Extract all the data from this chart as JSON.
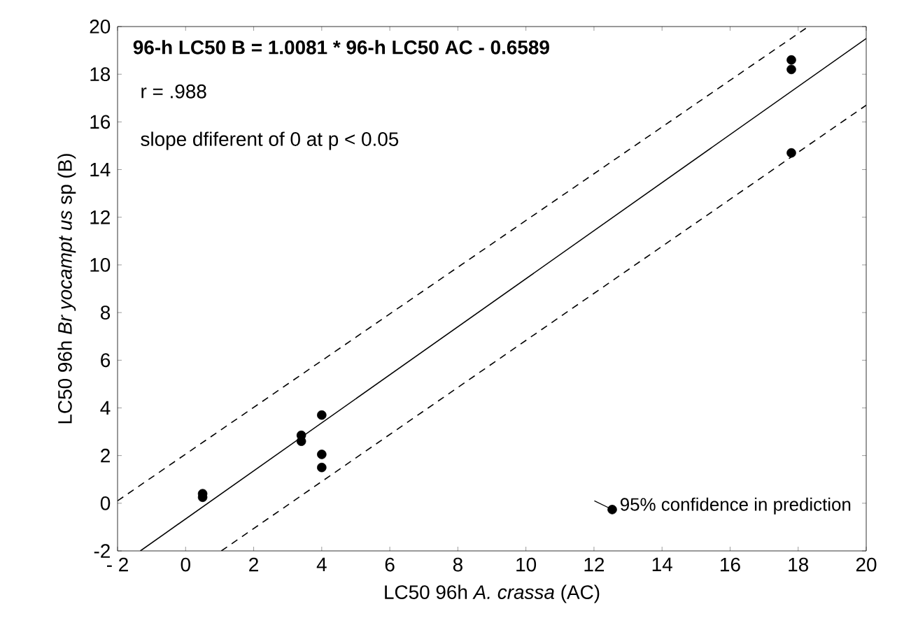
{
  "chart_data": {
    "type": "scatter",
    "title": "96-h LC50 B  = 1.0081 * 96-h LC50 AC - 0.6589",
    "xlabel": "LC50 96h *A. crassa* (AC)",
    "ylabel": "LC50 96h *Br yocampt us* sp (B)",
    "annotations": [
      "r = .988",
      "slope dfiferent of 0 at p < 0.05"
    ],
    "xlim": [
      -2,
      20
    ],
    "ylim": [
      -2,
      20
    ],
    "xticks": [
      {
        "value": -2,
        "label": "- 2"
      },
      0,
      2,
      4,
      6,
      8,
      10,
      12,
      14,
      16,
      18,
      20
    ],
    "yticks": [
      -2,
      0,
      2,
      4,
      6,
      8,
      10,
      12,
      14,
      16,
      18,
      20
    ],
    "grid": false,
    "legend": "bottom right",
    "series": [
      {
        "name": "95% confidence in prediction",
        "marker": "circle",
        "color": "#000000",
        "x": [
          0.5,
          0.5,
          3.4,
          3.4,
          4,
          4,
          4,
          17.8,
          17.8,
          17.8
        ],
        "values": [
          0.4,
          0.25,
          2.85,
          2.6,
          3.7,
          2.05,
          1.5,
          18.6,
          18.2,
          14.7
        ]
      },
      {
        "type": "line",
        "marker": "none",
        "line_style": "solid",
        "color": "#000000",
        "x": [
          -1.33,
          20
        ],
        "values": [
          -2,
          19.5
        ]
      },
      {
        "type": "line",
        "marker": "none",
        "line_style": "dashed",
        "color": "#000000",
        "x": [
          -2,
          18.3
        ],
        "values": [
          0.1,
          20
        ]
      },
      {
        "type": "line",
        "marker": "none",
        "line_style": "dashed",
        "color": "#000000",
        "x": [
          1.05,
          20
        ],
        "values": [
          -2,
          16.7
        ]
      }
    ]
  }
}
